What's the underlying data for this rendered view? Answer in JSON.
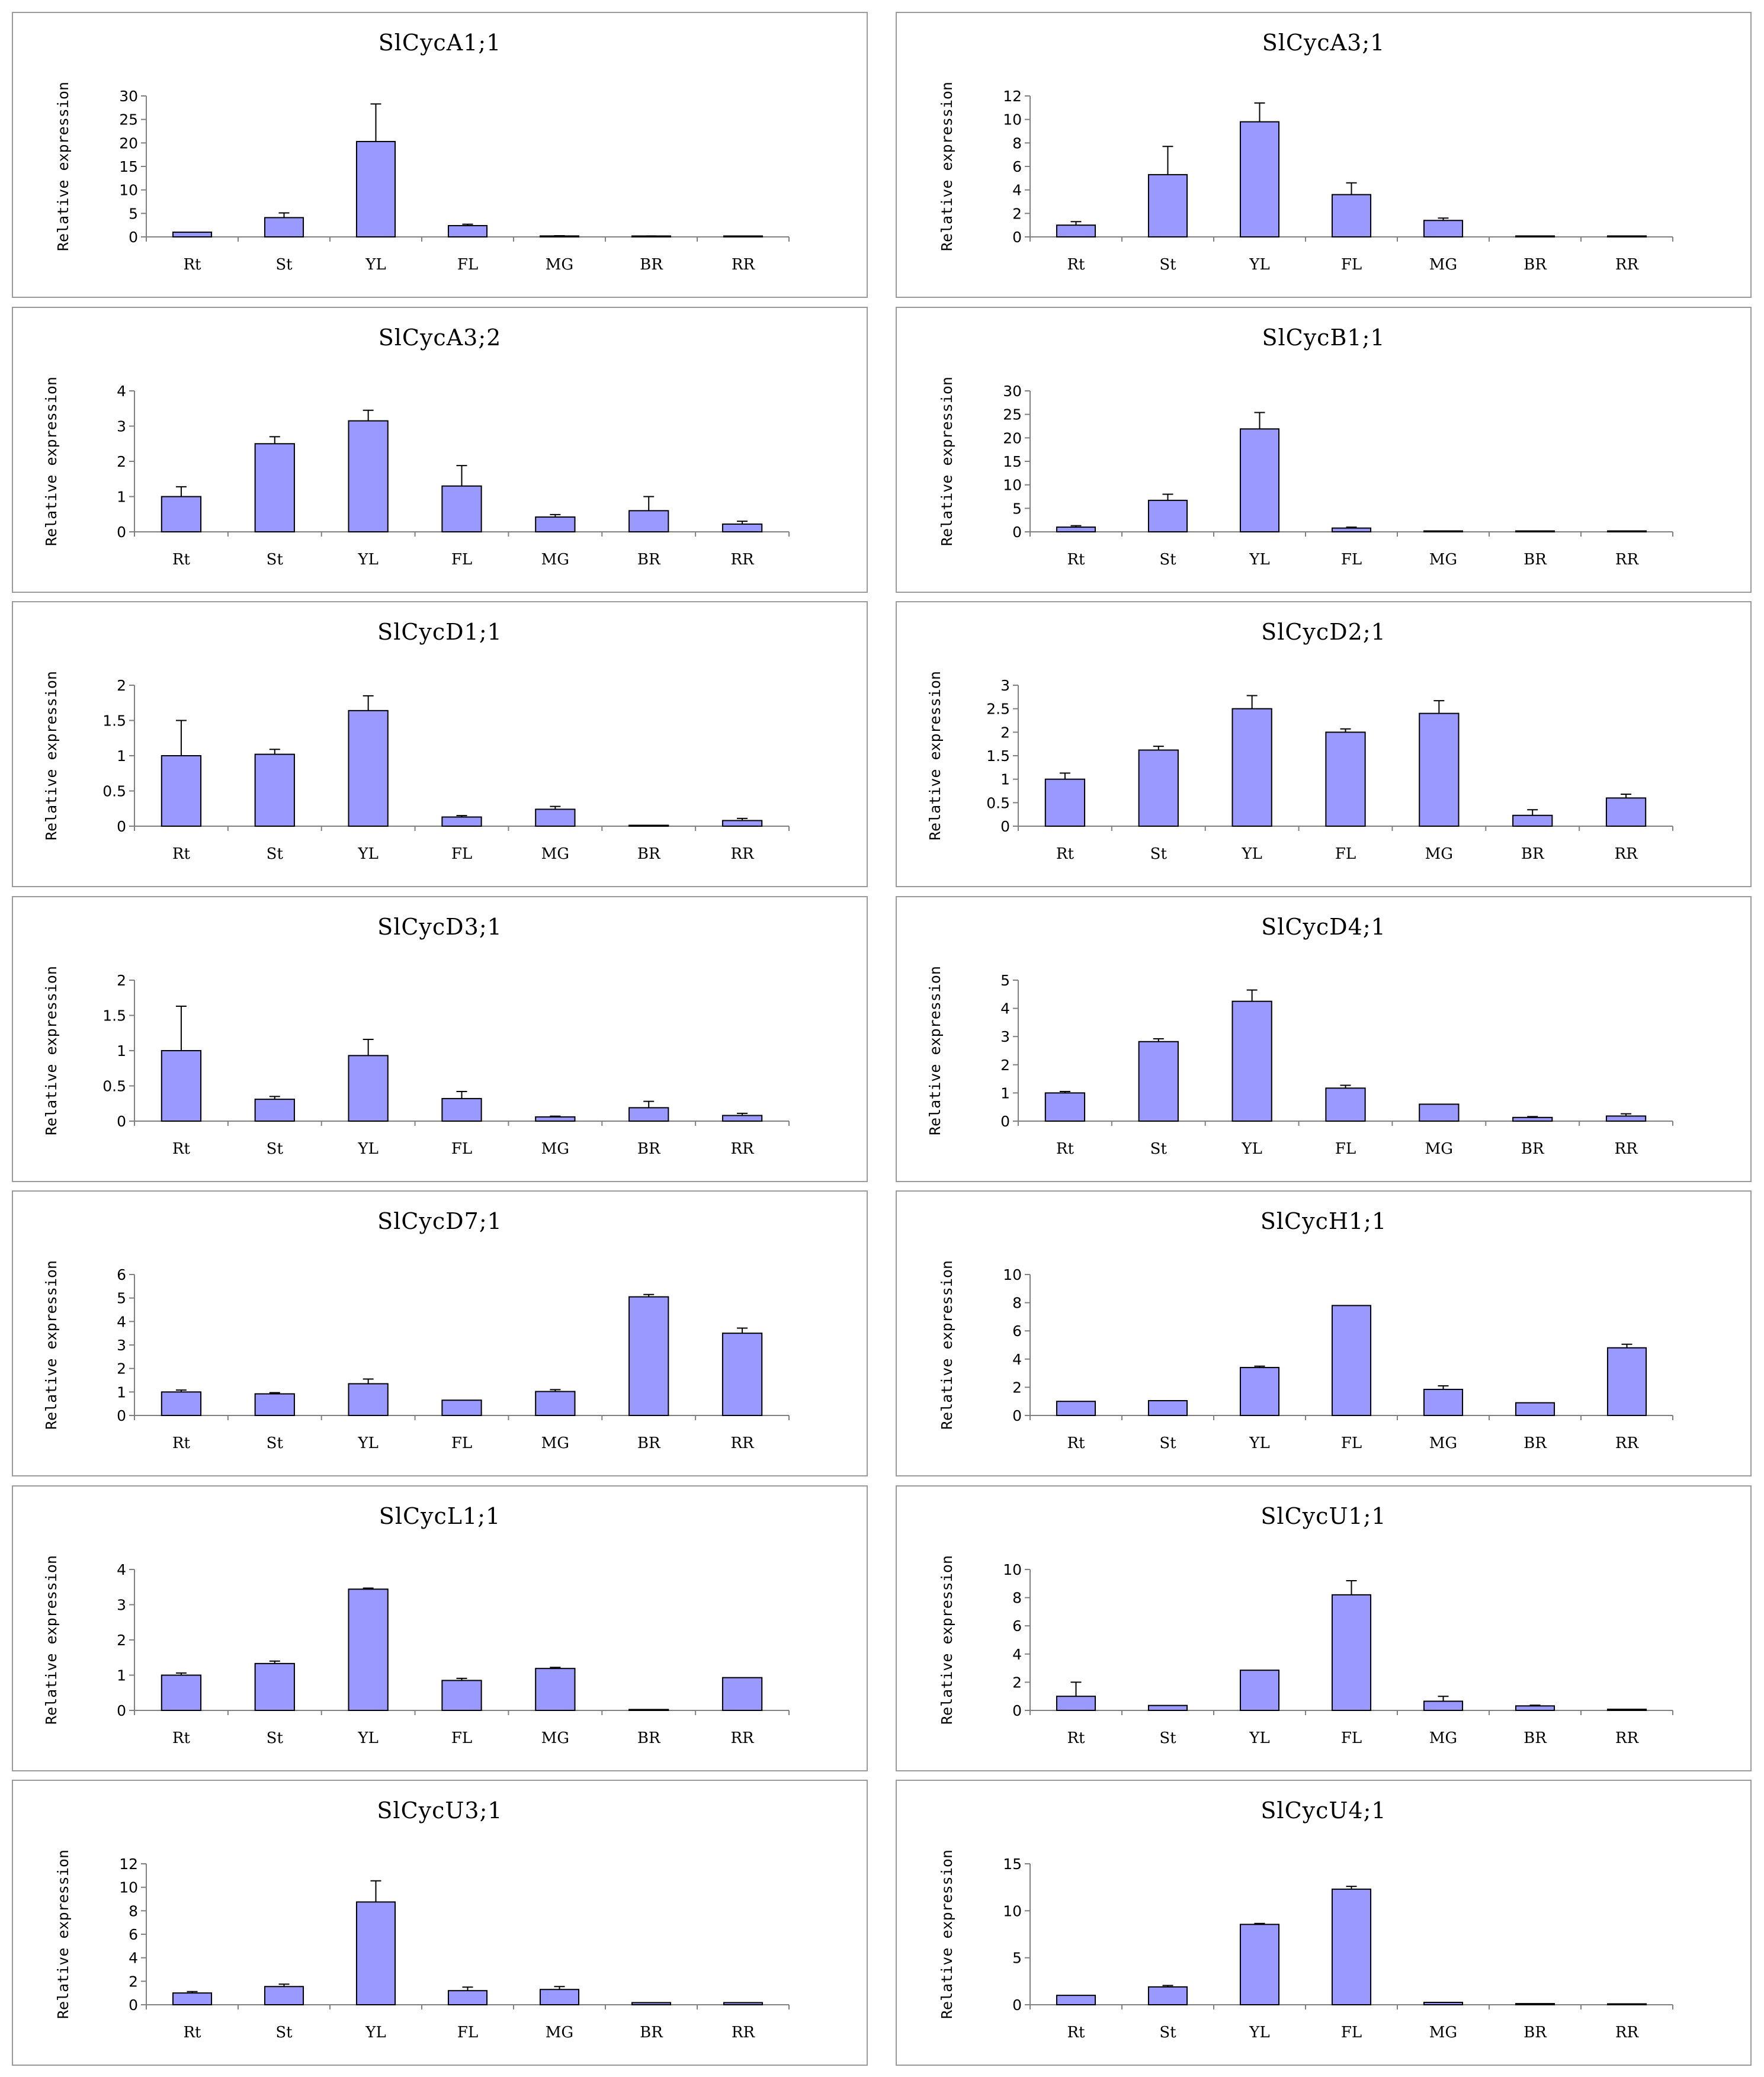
{
  "chart_data": [
    {
      "type": "bar",
      "title": "SlCycA1;1",
      "ylabel": "Relative expression",
      "categories": [
        "Rt",
        "St",
        "YL",
        "FL",
        "MG",
        "BR",
        "RR"
      ],
      "ylim": [
        0,
        30
      ],
      "yticks": [
        0,
        5,
        10,
        15,
        20,
        25,
        30
      ],
      "values": [
        1.0,
        4.1,
        20.3,
        2.4,
        0.2,
        0.15,
        0.05
      ],
      "errors": [
        0,
        1.0,
        8.0,
        0.3,
        0.05,
        0.05,
        0
      ]
    },
    {
      "type": "bar",
      "title": "SlCycA3;1",
      "ylabel": "Relative expression",
      "categories": [
        "Rt",
        "St",
        "YL",
        "FL",
        "MG",
        "BR",
        "RR"
      ],
      "ylim": [
        0,
        12
      ],
      "yticks": [
        0,
        2,
        4,
        6,
        8,
        10,
        12
      ],
      "values": [
        1.0,
        5.3,
        9.8,
        3.6,
        1.4,
        0.08,
        0.08
      ],
      "errors": [
        0.3,
        2.4,
        1.6,
        1.0,
        0.2,
        0,
        0
      ]
    },
    {
      "type": "bar",
      "title": "SlCycA3;2",
      "ylabel": "Relative expression",
      "categories": [
        "Rt",
        "St",
        "YL",
        "FL",
        "MG",
        "BR",
        "RR"
      ],
      "ylim": [
        0,
        4
      ],
      "yticks": [
        0,
        1,
        2,
        3,
        4
      ],
      "values": [
        1.0,
        2.5,
        3.15,
        1.3,
        0.42,
        0.6,
        0.22
      ],
      "errors": [
        0.28,
        0.2,
        0.3,
        0.58,
        0.07,
        0.4,
        0.08
      ]
    },
    {
      "type": "bar",
      "title": "SlCycB1;1",
      "ylabel": "Relative expression",
      "categories": [
        "Rt",
        "St",
        "YL",
        "FL",
        "MG",
        "BR",
        "RR"
      ],
      "ylim": [
        0,
        30
      ],
      "yticks": [
        0,
        5,
        10,
        15,
        20,
        25,
        30
      ],
      "values": [
        1.0,
        6.7,
        21.9,
        0.8,
        0.05,
        0.1,
        0.05
      ],
      "errors": [
        0.3,
        1.3,
        3.5,
        0.2,
        0,
        0,
        0
      ]
    },
    {
      "type": "bar",
      "title": "SlCycD1;1",
      "ylabel": "Relative expression",
      "categories": [
        "Rt",
        "St",
        "YL",
        "FL",
        "MG",
        "BR",
        "RR"
      ],
      "ylim": [
        0,
        2
      ],
      "yticks": [
        0,
        0.5,
        1,
        1.5,
        2
      ],
      "tick_labels": [
        "0",
        "0.5",
        "1",
        "1.5",
        "2"
      ],
      "values": [
        1.0,
        1.02,
        1.64,
        0.13,
        0.24,
        0.005,
        0.08
      ],
      "errors": [
        0.5,
        0.07,
        0.21,
        0.02,
        0.04,
        0,
        0.03
      ]
    },
    {
      "type": "bar",
      "title": "SlCycD2;1",
      "ylabel": "Relative expression",
      "categories": [
        "Rt",
        "St",
        "YL",
        "FL",
        "MG",
        "BR",
        "RR"
      ],
      "ylim": [
        0,
        3
      ],
      "yticks": [
        0,
        0.5,
        1,
        1.5,
        2,
        2.5,
        3
      ],
      "tick_labels": [
        "0",
        "0.5",
        "1",
        "1.5",
        "2",
        "2.5",
        "3"
      ],
      "values": [
        1.0,
        1.62,
        2.5,
        2.0,
        2.4,
        0.23,
        0.6
      ],
      "errors": [
        0.13,
        0.08,
        0.28,
        0.07,
        0.27,
        0.12,
        0.08
      ]
    },
    {
      "type": "bar",
      "title": "SlCycD3;1",
      "ylabel": "Relative expression",
      "categories": [
        "Rt",
        "St",
        "YL",
        "FL",
        "MG",
        "BR",
        "RR"
      ],
      "ylim": [
        0,
        2
      ],
      "yticks": [
        0,
        0.5,
        1,
        1.5,
        2
      ],
      "tick_labels": [
        "0",
        "0.5",
        "1",
        "1.5",
        "2"
      ],
      "values": [
        1.0,
        0.31,
        0.93,
        0.32,
        0.06,
        0.19,
        0.08
      ],
      "errors": [
        0.63,
        0.04,
        0.23,
        0.1,
        0.01,
        0.09,
        0.03
      ]
    },
    {
      "type": "bar",
      "title": "SlCycD4;1",
      "ylabel": "Relative expression",
      "categories": [
        "Rt",
        "St",
        "YL",
        "FL",
        "MG",
        "BR",
        "RR"
      ],
      "ylim": [
        0,
        5
      ],
      "yticks": [
        0,
        1,
        2,
        3,
        4,
        5
      ],
      "values": [
        1.0,
        2.82,
        4.25,
        1.17,
        0.6,
        0.13,
        0.18
      ],
      "errors": [
        0.05,
        0.1,
        0.4,
        0.1,
        0,
        0.03,
        0.08
      ]
    },
    {
      "type": "bar",
      "title": "SlCycD7;1",
      "ylabel": "Relative expression",
      "categories": [
        "Rt",
        "St",
        "YL",
        "FL",
        "MG",
        "BR",
        "RR"
      ],
      "ylim": [
        0,
        6
      ],
      "yticks": [
        0,
        1,
        2,
        3,
        4,
        5,
        6
      ],
      "values": [
        1.0,
        0.92,
        1.35,
        0.65,
        1.02,
        5.05,
        3.5
      ],
      "errors": [
        0.08,
        0.05,
        0.2,
        0,
        0.08,
        0.1,
        0.22
      ]
    },
    {
      "type": "bar",
      "title": "SlCycH1;1",
      "ylabel": "Relative expression",
      "categories": [
        "Rt",
        "St",
        "YL",
        "FL",
        "MG",
        "BR",
        "RR"
      ],
      "ylim": [
        0,
        10
      ],
      "yticks": [
        0,
        2,
        4,
        6,
        8,
        10
      ],
      "values": [
        1.0,
        1.05,
        3.4,
        7.8,
        1.85,
        0.9,
        4.8
      ],
      "errors": [
        0,
        0,
        0.1,
        0,
        0.25,
        0,
        0.25
      ]
    },
    {
      "type": "bar",
      "title": "SlCycL1;1",
      "ylabel": "Relative expression",
      "categories": [
        "Rt",
        "St",
        "YL",
        "FL",
        "MG",
        "BR",
        "RR"
      ],
      "ylim": [
        0,
        4
      ],
      "yticks": [
        0,
        1,
        2,
        3,
        4
      ],
      "values": [
        1.0,
        1.33,
        3.44,
        0.85,
        1.19,
        0.01,
        0.93
      ],
      "errors": [
        0.06,
        0.07,
        0.03,
        0.06,
        0.03,
        0,
        0
      ]
    },
    {
      "type": "bar",
      "title": "SlCycU1;1",
      "ylabel": "Relative expression",
      "categories": [
        "Rt",
        "St",
        "YL",
        "FL",
        "MG",
        "BR",
        "RR"
      ],
      "ylim": [
        0,
        10
      ],
      "yticks": [
        0,
        2,
        4,
        6,
        8,
        10
      ],
      "values": [
        1.0,
        0.35,
        2.85,
        8.2,
        0.65,
        0.32,
        0.08
      ],
      "errors": [
        1.0,
        0,
        0,
        1.0,
        0.35,
        0.05,
        0
      ]
    },
    {
      "type": "bar",
      "title": "SlCycU3;1",
      "ylabel": "Relative expression",
      "categories": [
        "Rt",
        "St",
        "YL",
        "FL",
        "MG",
        "BR",
        "RR"
      ],
      "ylim": [
        0,
        12
      ],
      "yticks": [
        0,
        2,
        4,
        6,
        8,
        10,
        12
      ],
      "values": [
        1.0,
        1.55,
        8.75,
        1.2,
        1.3,
        0.18,
        0.18
      ],
      "errors": [
        0.12,
        0.2,
        1.8,
        0.3,
        0.25,
        0,
        0
      ]
    },
    {
      "type": "bar",
      "title": "SlCycU4;1",
      "ylabel": "Relative expression",
      "categories": [
        "Rt",
        "St",
        "YL",
        "FL",
        "MG",
        "BR",
        "RR"
      ],
      "ylim": [
        0,
        15
      ],
      "yticks": [
        0,
        5,
        10,
        15
      ],
      "values": [
        1.0,
        1.9,
        8.55,
        12.3,
        0.25,
        0.12,
        0.02
      ],
      "errors": [
        0,
        0.15,
        0.1,
        0.3,
        0,
        0,
        0
      ]
    }
  ],
  "style": {
    "bar_color": "#9999ff",
    "bar_stroke": "#000000",
    "axis_color": "#808080",
    "border_color": "#9a9a9a"
  }
}
